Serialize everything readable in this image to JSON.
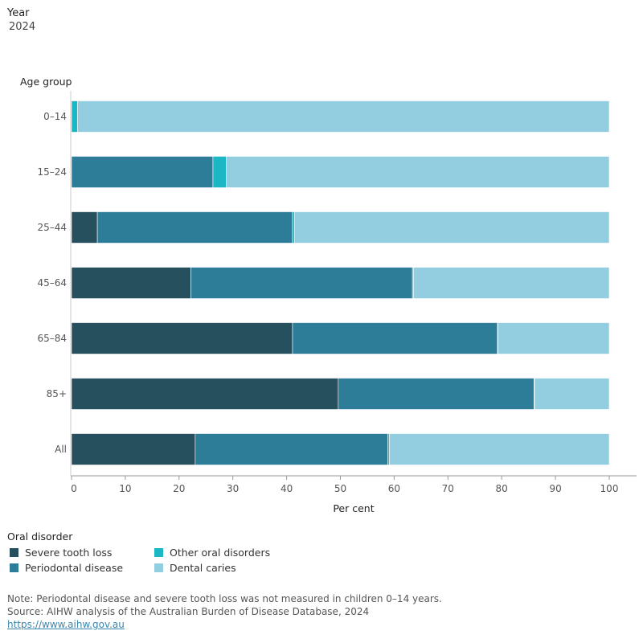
{
  "filter": {
    "label": "Year",
    "value": "2024"
  },
  "chart_data": {
    "type": "bar",
    "orientation": "horizontal",
    "stacked": true,
    "categories": [
      "0–14",
      "15–24",
      "25–44",
      "45–64",
      "65–84",
      "85+",
      "All"
    ],
    "series": [
      {
        "name": "Severe tooth loss",
        "color": "#27505f",
        "values": [
          0,
          0,
          4.8,
          22.2,
          41.1,
          49.6,
          23.0
        ]
      },
      {
        "name": "Periodontal disease",
        "color": "#2e7d98",
        "values": [
          0,
          26.3,
          36.3,
          41.2,
          38.1,
          36.4,
          35.8
        ]
      },
      {
        "name": "Other oral disorders",
        "color": "#1bb7c4",
        "values": [
          1.1,
          2.5,
          0.4,
          0.2,
          0.1,
          0.1,
          0.3
        ]
      },
      {
        "name": "Dental caries",
        "color": "#93cde0",
        "values": [
          98.9,
          71.2,
          58.5,
          36.4,
          20.7,
          13.9,
          40.9
        ]
      }
    ],
    "xlabel": "Per cent",
    "ylabel": "Age group",
    "xlim": [
      0,
      100
    ],
    "xticks": [
      0,
      10,
      20,
      30,
      40,
      50,
      60,
      70,
      80,
      90,
      100
    ],
    "legend_title": "Oral disorder",
    "legend_position": "bottom",
    "grid": false
  },
  "notes": {
    "note": "Note: Periodontal disease and severe tooth loss was not measured in children 0–14 years.",
    "source": "Source: AIHW analysis of the Australian Burden of Disease Database, 2024",
    "link": "https://www.aihw.gov.au"
  }
}
